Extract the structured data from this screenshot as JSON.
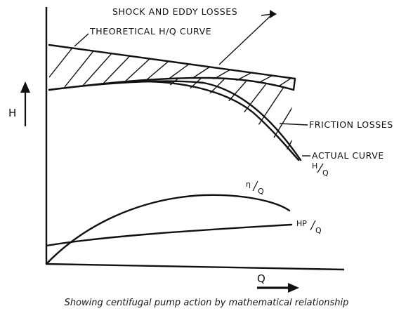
{
  "labels": {
    "shock_eddy": "SHOCK AND EDDY LOSSES",
    "theoretical": "THEORETICAL H/Q CURVE",
    "friction": "FRICTION LOSSES",
    "actual": "ACTUAL CURVE",
    "hq_main": "H",
    "hq_sub": "Q",
    "eta_main": "η",
    "eta_sub": "Q",
    "hp_main": "HP",
    "hp_sub": "Q",
    "y_axis": "H",
    "x_axis": "Q"
  },
  "caption": "Showing centifugal pump action by mathematical relationship"
}
